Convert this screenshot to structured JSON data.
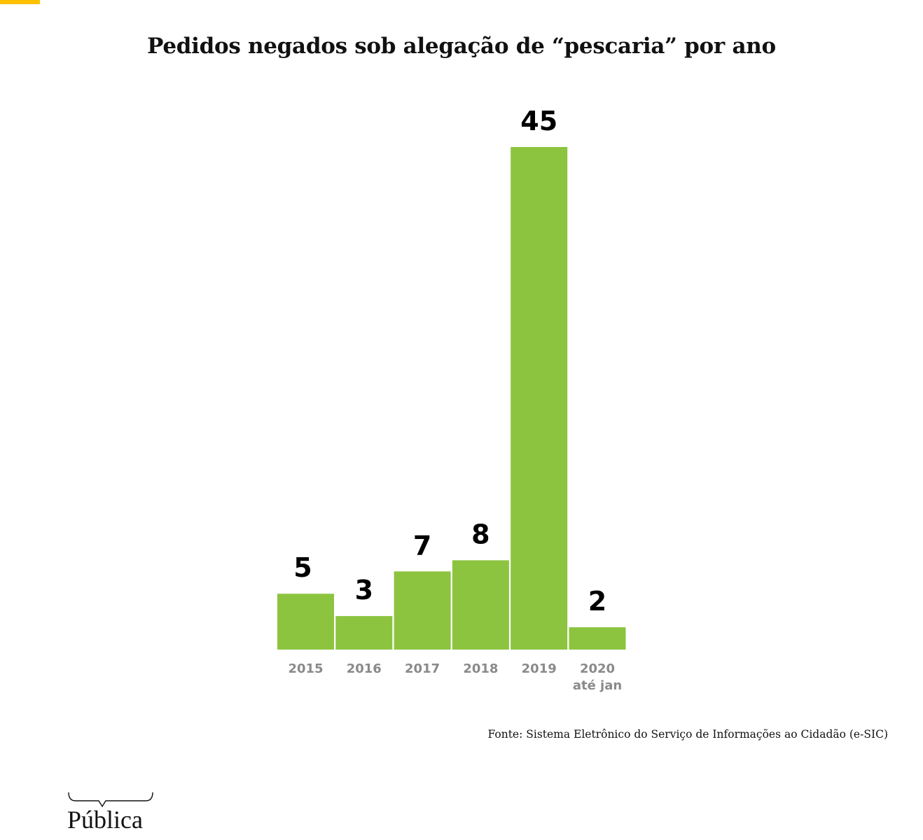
{
  "colors": {
    "accent": "#ffc000",
    "bar": "#8cc43f",
    "value_label": "#000000",
    "tick_label": "#8a8a8a"
  },
  "chart_data": {
    "type": "bar",
    "title": "Pedidos negados sob alegação de “pescaria” por ano",
    "categories": [
      "2015",
      "2016",
      "2017",
      "2018",
      "2019",
      "2020"
    ],
    "category_sublabels": [
      "",
      "",
      "",
      "",
      "",
      "até jan"
    ],
    "values": [
      5,
      3,
      7,
      8,
      45,
      2
    ],
    "value_labels": [
      "5",
      "3",
      "7",
      "8",
      "45",
      "2"
    ],
    "xlabel": "",
    "ylabel": "",
    "ylim": [
      0,
      45
    ],
    "grid": false,
    "legend": "none"
  },
  "source": "Fonte: Sistema Eletrônico do Serviço de Informações ao Cidadão (e-SIC)",
  "logo": {
    "text": "Pública"
  }
}
